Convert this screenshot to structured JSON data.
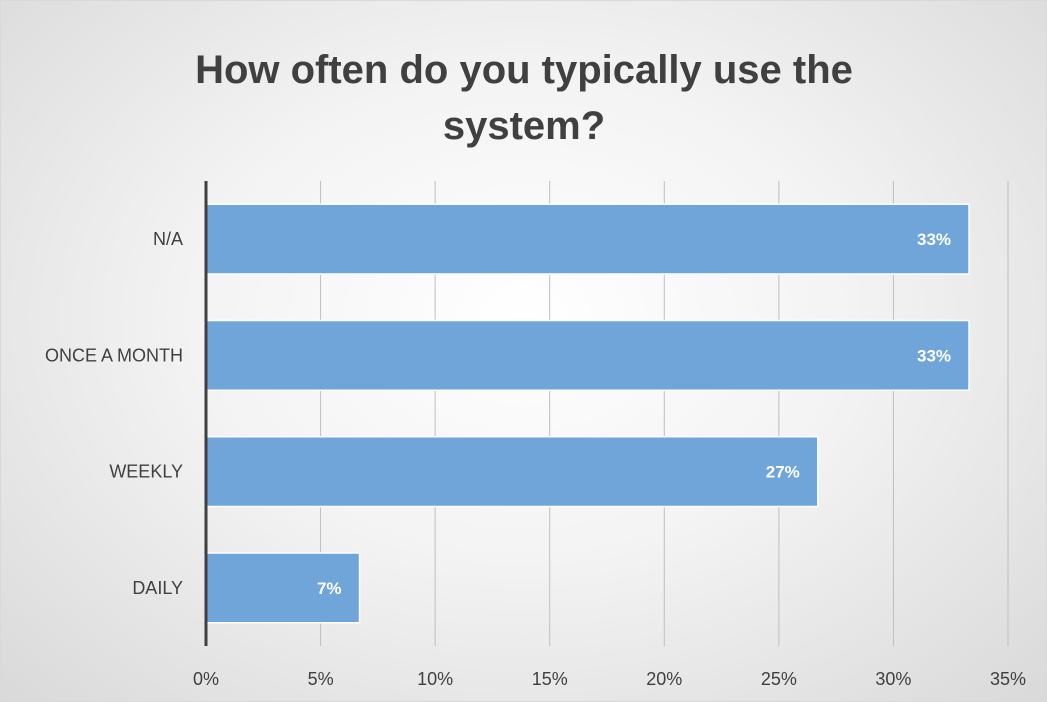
{
  "chart_data": {
    "type": "bar",
    "orientation": "horizontal",
    "title": [
      "How often do you typically use the",
      "system?"
    ],
    "categories": [
      "N/A",
      "ONCE A MONTH",
      "WEEKLY",
      "DAILY"
    ],
    "values": [
      33.3,
      33.3,
      26.7,
      6.7
    ],
    "data_labels": [
      "33%",
      "33%",
      "27%",
      "7%"
    ],
    "xlim": [
      0,
      35
    ],
    "x_ticks": [
      0,
      5,
      10,
      15,
      20,
      25,
      30,
      35
    ],
    "x_tick_labels": [
      "0%",
      "5%",
      "10%",
      "15%",
      "20%",
      "25%",
      "30%",
      "35%"
    ],
    "xlabel": "",
    "ylabel": "",
    "grid": "vertical",
    "legend": "none",
    "bar_color": "#6fa5d9",
    "bar_border_color": "#ffffff"
  }
}
